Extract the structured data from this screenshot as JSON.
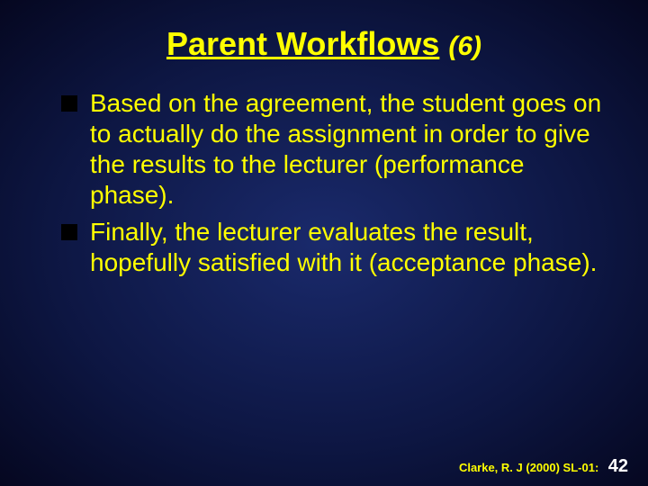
{
  "background": {
    "gradient_center": "#1a2a6c",
    "gradient_mid": "#0d1642",
    "gradient_edge": "#050720"
  },
  "title": {
    "main": "Parent Workflows",
    "sub": "(6)",
    "color": "#ffff00",
    "fontsize": 36,
    "sub_fontsize": 30
  },
  "body": {
    "text_color": "#ffff00",
    "fontsize": 28,
    "line_height": 1.22,
    "bullet_color": "#000000",
    "bullet_size": 18,
    "items": [
      "Based on the agreement, the student goes on to actually do the assignment in order to give the results to the lecturer (performance phase).",
      "Finally, the lecturer evaluates the result, hopefully satisfied with it (acceptance phase)."
    ]
  },
  "footer": {
    "citation": "Clarke, R. J (2000) SL-01:",
    "citation_color": "#ffff00",
    "citation_fontsize": 13,
    "page": "42",
    "page_color": "#ffffff",
    "page_fontsize": 20
  }
}
